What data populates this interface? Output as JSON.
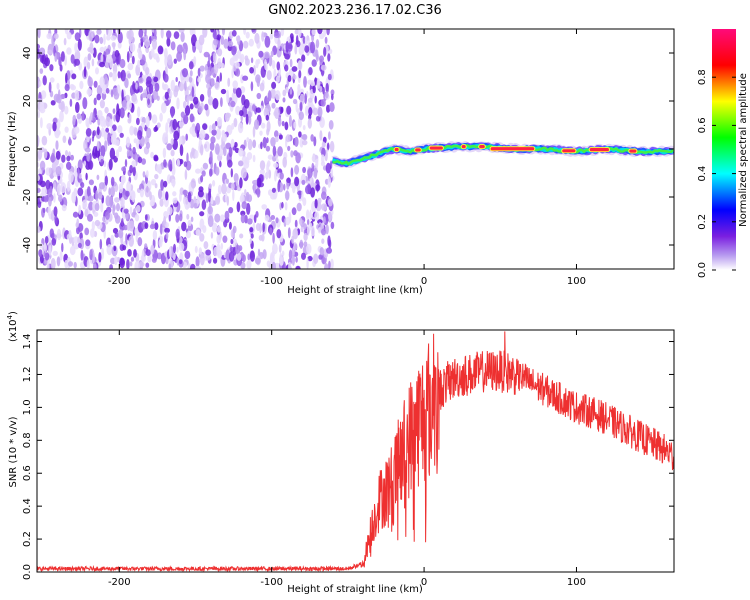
{
  "figure_title": "GN02.2023.236.17.02.C36",
  "chart_data": [
    {
      "type": "heatmap",
      "title": "",
      "xlabel": "Height of straight line (km)",
      "ylabel": "Frequency (Hz)",
      "xlim": [
        -254,
        164
      ],
      "ylim": [
        -50,
        50
      ],
      "x_ticks": [
        -200,
        -100,
        0,
        100
      ],
      "y_ticks": [
        -40,
        -20,
        0,
        20,
        40
      ],
      "noise_region_x": [
        -254,
        -60
      ],
      "ridge": {
        "description_points": [
          {
            "x": -60,
            "y": -5
          },
          {
            "x": -50,
            "y": -6
          },
          {
            "x": -40,
            "y": -4
          },
          {
            "x": -30,
            "y": -2
          },
          {
            "x": -20,
            "y": 0
          },
          {
            "x": -10,
            "y": -1
          },
          {
            "x": 0,
            "y": 0
          },
          {
            "x": 20,
            "y": 1
          },
          {
            "x": 40,
            "y": 1
          },
          {
            "x": 60,
            "y": 0
          },
          {
            "x": 80,
            "y": 0
          },
          {
            "x": 100,
            "y": -1
          },
          {
            "x": 120,
            "y": 0
          },
          {
            "x": 140,
            "y": -1
          },
          {
            "x": 164,
            "y": -1
          }
        ]
      },
      "colorbar": {
        "label": "Normalized spectral amplitude",
        "ticks": [
          "0.0",
          "0.2",
          "0.4",
          "0.6",
          "0.8"
        ],
        "range": [
          0,
          1
        ],
        "colors": [
          "#ffffff",
          "#8a2be2",
          "#0000ff",
          "#00ffff",
          "#00ff00",
          "#ffff00",
          "#ff0000",
          "#ff0080"
        ]
      }
    },
    {
      "type": "line",
      "title": "",
      "xlabel": "Height of straight line (km)",
      "ylabel": "SNR (10 * v/v)",
      "y_multiplier": "(x10^4)",
      "xlim": [
        -254,
        164
      ],
      "ylim": [
        0,
        1.47
      ],
      "x_ticks": [
        -200,
        -100,
        0,
        100
      ],
      "y_ticks": [
        "0.0",
        "0.2",
        "0.4",
        "0.6",
        "0.8",
        "1.0",
        "1.2",
        "1.4"
      ],
      "color": "#ee3030",
      "series": [
        {
          "envelope_x": [
            -254,
            -200,
            -100,
            -50,
            -40,
            -35,
            -30,
            -25,
            -20,
            -15,
            -10,
            -5,
            0,
            5,
            10,
            15,
            20,
            30,
            40,
            50,
            60,
            70,
            80,
            90,
            100,
            110,
            120,
            130,
            140,
            150,
            160,
            164
          ],
          "envelope_y": [
            0.02,
            0.02,
            0.02,
            0.02,
            0.05,
            0.25,
            0.42,
            0.5,
            0.55,
            0.7,
            0.8,
            0.9,
            0.95,
            1.05,
            1.1,
            1.15,
            1.18,
            1.2,
            1.22,
            1.22,
            1.2,
            1.15,
            1.1,
            1.05,
            1.0,
            0.97,
            0.93,
            0.88,
            0.83,
            0.78,
            0.73,
            0.7
          ]
        }
      ]
    }
  ]
}
